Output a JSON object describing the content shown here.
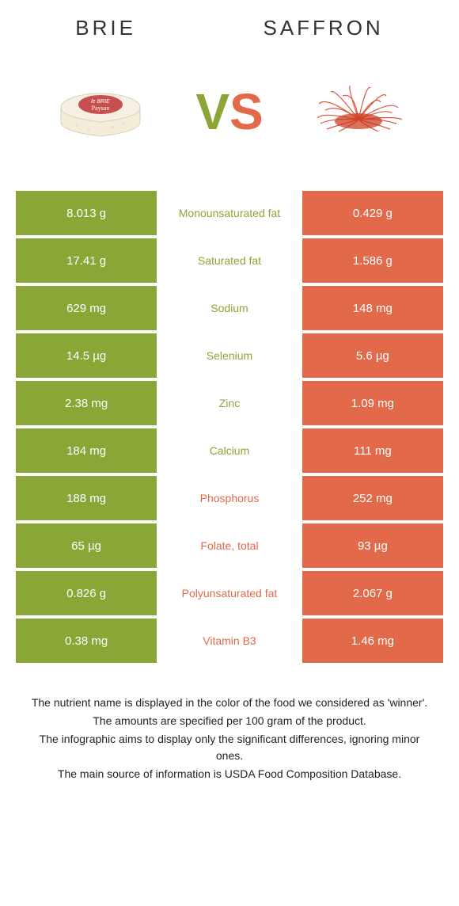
{
  "header": {
    "left_title": "Brie",
    "right_title": "Saffron",
    "vs_v": "V",
    "vs_s": "S"
  },
  "colors": {
    "green": "#8aa636",
    "orange": "#e26a4a",
    "background": "#ffffff",
    "text": "#333333"
  },
  "rows": [
    {
      "left": "8.013 g",
      "label": "Monounsaturated fat",
      "right": "0.429 g",
      "winner": "left"
    },
    {
      "left": "17.41 g",
      "label": "Saturated fat",
      "right": "1.586 g",
      "winner": "left"
    },
    {
      "left": "629 mg",
      "label": "Sodium",
      "right": "148 mg",
      "winner": "left"
    },
    {
      "left": "14.5 µg",
      "label": "Selenium",
      "right": "5.6 µg",
      "winner": "left"
    },
    {
      "left": "2.38 mg",
      "label": "Zinc",
      "right": "1.09 mg",
      "winner": "left"
    },
    {
      "left": "184 mg",
      "label": "Calcium",
      "right": "111 mg",
      "winner": "left"
    },
    {
      "left": "188 mg",
      "label": "Phosphorus",
      "right": "252 mg",
      "winner": "right"
    },
    {
      "left": "65 µg",
      "label": "Folate, total",
      "right": "93 µg",
      "winner": "right"
    },
    {
      "left": "0.826 g",
      "label": "Polyunsaturated fat",
      "right": "2.067 g",
      "winner": "right"
    },
    {
      "left": "0.38 mg",
      "label": "Vitamin B3",
      "right": "1.46 mg",
      "winner": "right"
    }
  ],
  "footer": {
    "line1": "The nutrient name is displayed in the color of the food we considered as 'winner'.",
    "line2": "The amounts are specified per 100 gram of the product.",
    "line3": "The infographic aims to display only the significant differences, ignoring minor ones.",
    "line4": "The main source of information is USDA Food Composition Database."
  }
}
